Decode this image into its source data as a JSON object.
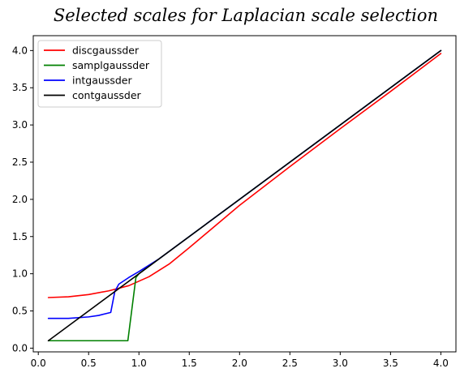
{
  "chart_data": {
    "type": "line",
    "title": "Selected scales for Laplacian scale selection",
    "xlabel": "",
    "ylabel": "",
    "xlim": [
      -0.05,
      4.15
    ],
    "ylim": [
      -0.05,
      4.2
    ],
    "x_ticks": [
      "0.0",
      "0.5",
      "1.0",
      "1.5",
      "2.0",
      "2.5",
      "3.0",
      "3.5",
      "4.0"
    ],
    "y_ticks": [
      "0.0",
      "0.5",
      "1.0",
      "1.5",
      "2.0",
      "2.5",
      "3.0",
      "3.5",
      "4.0"
    ],
    "grid": false,
    "legend_position": "upper-left",
    "series": [
      {
        "name": "discgaussder",
        "color": "#ff0000",
        "x": [
          0.1,
          0.3,
          0.5,
          0.7,
          0.9,
          1.1,
          1.3,
          1.5,
          2.0,
          2.5,
          3.0,
          3.5,
          4.0
        ],
        "y": [
          0.68,
          0.69,
          0.72,
          0.77,
          0.84,
          0.96,
          1.13,
          1.35,
          1.92,
          2.44,
          2.95,
          3.45,
          3.96
        ]
      },
      {
        "name": "samplgaussder",
        "color": "#008000",
        "x": [
          0.1,
          0.3,
          0.5,
          0.7,
          0.89,
          0.97,
          1.0,
          1.5,
          2.0,
          2.5,
          3.0,
          3.5,
          4.0
        ],
        "y": [
          0.1,
          0.1,
          0.1,
          0.1,
          0.1,
          0.95,
          1.0,
          1.5,
          2.0,
          2.5,
          3.0,
          3.5,
          4.0
        ]
      },
      {
        "name": "intgaussder",
        "color": "#0000ff",
        "x": [
          0.1,
          0.3,
          0.5,
          0.6,
          0.72,
          0.76,
          0.8,
          0.9,
          1.0,
          1.2,
          1.5,
          2.0,
          2.5,
          3.0,
          3.5,
          4.0
        ],
        "y": [
          0.4,
          0.4,
          0.42,
          0.44,
          0.48,
          0.76,
          0.86,
          0.95,
          1.03,
          1.2,
          1.5,
          2.0,
          2.5,
          3.0,
          3.5,
          4.0
        ]
      },
      {
        "name": "contgaussder",
        "color": "#000000",
        "x": [
          0.1,
          4.0
        ],
        "y": [
          0.1,
          4.0
        ]
      }
    ]
  }
}
